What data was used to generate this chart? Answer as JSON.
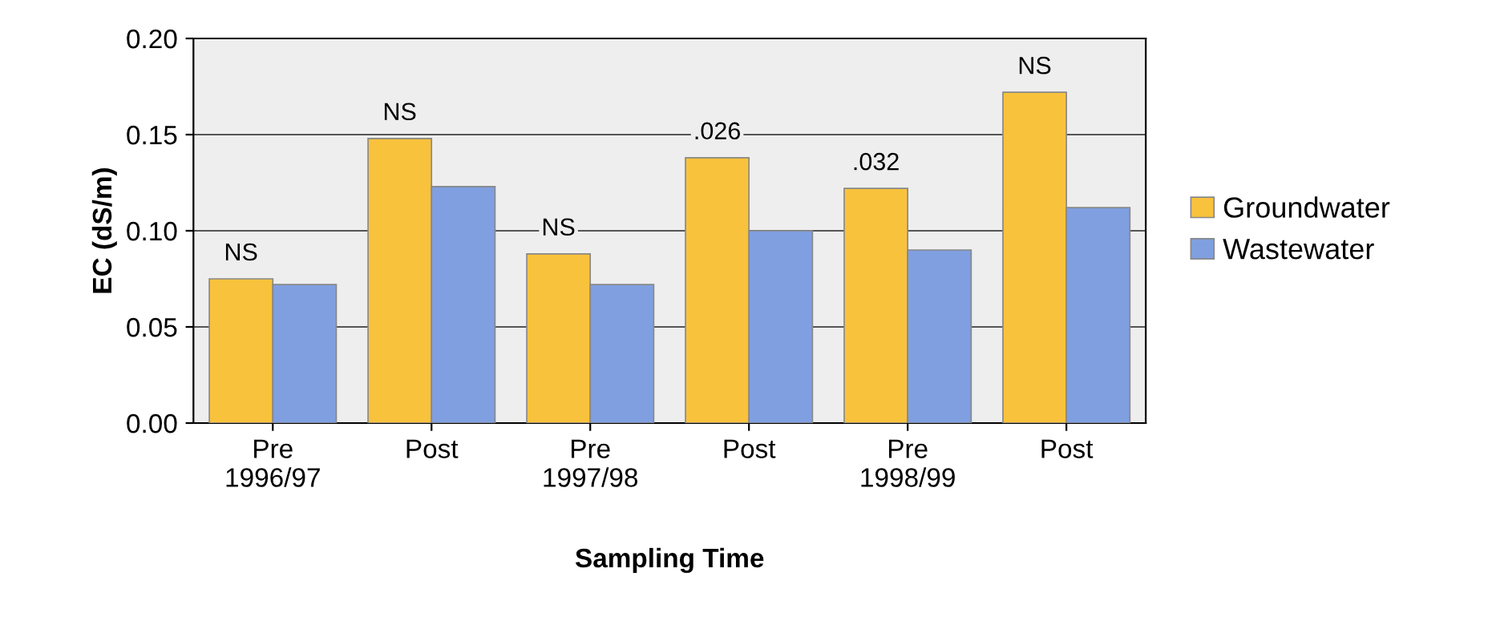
{
  "chart_data": {
    "type": "bar",
    "xlabel": "Sampling Time",
    "ylabel": "EC (dS/m)",
    "categories": [
      "Pre\n1996/97",
      "Post",
      "Pre\n1997/98",
      "Post",
      "Pre\n1998/99",
      "Post"
    ],
    "series": [
      {
        "name": "Groundwater",
        "color": "#f9c23c",
        "values": [
          0.075,
          0.148,
          0.088,
          0.138,
          0.122,
          0.172
        ]
      },
      {
        "name": "Wastewater",
        "color": "#7f9fe0",
        "values": [
          0.072,
          0.123,
          0.072,
          0.1,
          0.09,
          0.112
        ]
      }
    ],
    "ylim": [
      0,
      0.2
    ],
    "yticks": [
      {
        "value": 0,
        "label": "0.00"
      },
      {
        "value": 0.05,
        "label": "0.05"
      },
      {
        "value": 0.1,
        "label": "0.10"
      },
      {
        "value": 0.15,
        "label": "0.15"
      },
      {
        "value": 0.2,
        "label": "0.20"
      }
    ],
    "grid": "y",
    "legend": "right",
    "annotations": [
      "NS",
      "NS",
      "NS",
      ".026",
      ".032",
      "NS"
    ]
  }
}
